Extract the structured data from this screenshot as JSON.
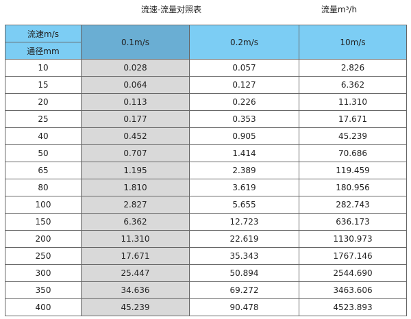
{
  "title": "流速-流量对照表",
  "unit": "流量m³/h",
  "colors": {
    "header": "#7ccdf4",
    "selected_header": "#6aaed3",
    "selected_column": "#d9d9d9"
  },
  "header": {
    "velocity_label": "流速m/s",
    "diameter_label": "通径mm",
    "columns": [
      "0.1m/s",
      "0.2m/s",
      "10m/s"
    ]
  },
  "rows": [
    [
      "10",
      "0.028",
      "0.057",
      "2.826"
    ],
    [
      "15",
      "0.064",
      "0.127",
      "6.362"
    ],
    [
      "20",
      "0.113",
      "0.226",
      "11.310"
    ],
    [
      "25",
      "0.177",
      "0.353",
      "17.671"
    ],
    [
      "40",
      "0.452",
      "0.905",
      "45.239"
    ],
    [
      "50",
      "0.707",
      "1.414",
      "70.686"
    ],
    [
      "65",
      "1.195",
      "2.389",
      "119.459"
    ],
    [
      "80",
      "1.810",
      "3.619",
      "180.956"
    ],
    [
      "100",
      "2.827",
      "5.655",
      "282.743"
    ],
    [
      "150",
      "6.362",
      "12.723",
      "636.173"
    ],
    [
      "200",
      "11.310",
      "22.619",
      "1130.973"
    ],
    [
      "250",
      "17.671",
      "35.343",
      "1767.146"
    ],
    [
      "300",
      "25.447",
      "50.894",
      "2544.690"
    ],
    [
      "350",
      "34.636",
      "69.272",
      "3463.606"
    ],
    [
      "400",
      "45.239",
      "90.478",
      "4523.893"
    ]
  ]
}
